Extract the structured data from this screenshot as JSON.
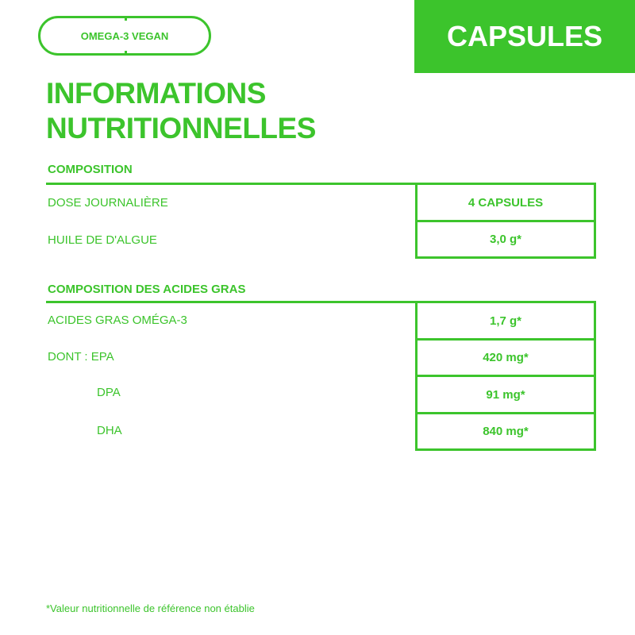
{
  "badge": "OMEGA-3 VEGAN",
  "banner": "CAPSULES",
  "title": [
    "INFORMATIONS",
    "NUTRITIONNELLES"
  ],
  "sections": [
    {
      "heading": "COMPOSITION",
      "rows": [
        {
          "label": "DOSE JOURNALIÈRE",
          "value": "4 CAPSULES"
        },
        {
          "label": "HUILE DE D'ALGUE",
          "value": "3,0 g*"
        }
      ]
    },
    {
      "heading": "COMPOSITION DES ACIDES GRAS",
      "rows": [
        {
          "label": "ACIDES GRAS OMÉGA-3",
          "value": "1,7 g*"
        },
        {
          "label": "DONT : EPA",
          "value": "420 mg*"
        },
        {
          "label": "DPA",
          "value": "91 mg*"
        },
        {
          "label": "DHA",
          "value": "840 mg*"
        }
      ]
    }
  ],
  "footnote": "*Valeur nutritionnelle de référence non établie",
  "colors": {
    "accent": "#3cc42c"
  }
}
